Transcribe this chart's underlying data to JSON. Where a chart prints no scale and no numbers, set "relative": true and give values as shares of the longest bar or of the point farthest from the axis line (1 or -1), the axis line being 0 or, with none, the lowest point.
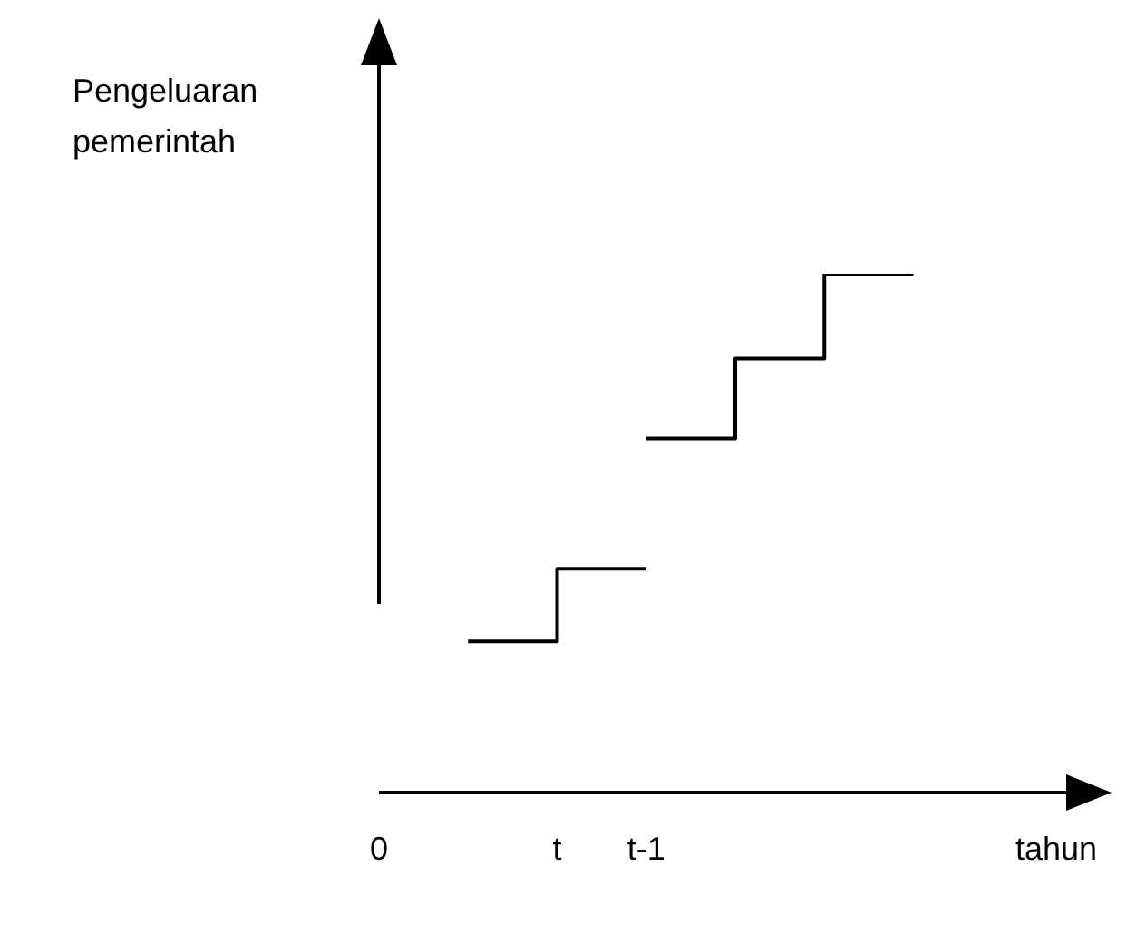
{
  "chart_data": {
    "type": "step",
    "relative": true,
    "xlabel": "tahun",
    "ylabel": "Pengeluaran pemerintah",
    "categories": [
      "0",
      null,
      "t",
      "t-1",
      null,
      null,
      null,
      null,
      null
    ],
    "series": [
      {
        "color": "#000000",
        "values": [
          null,
          0.29,
          0.43,
          0.43,
          null,
          null,
          null,
          null,
          null
        ]
      },
      {
        "color": "#000000",
        "values": [
          null,
          null,
          null,
          0.682,
          0.836,
          1.0,
          1.0,
          null,
          null
        ]
      }
    ],
    "grid": false,
    "legend": false,
    "marker": "none",
    "line_style": "solid"
  }
}
